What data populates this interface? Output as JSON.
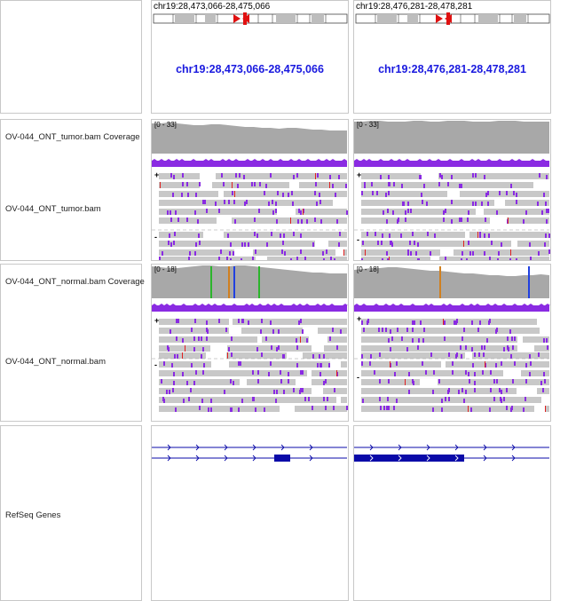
{
  "track_names": {
    "tumor_coverage": "OV-044_ONT_tumor.bam Coverage",
    "tumor_reads": "OV-044_ONT_tumor.bam",
    "normal_coverage": "OV-044_ONT_normal.bam Coverage",
    "normal_reads": "OV-044_ONT_normal.bam",
    "genes": "RefSeq Genes"
  },
  "panels": [
    {
      "locus": "chr19:28,473,066-28,475,066",
      "tumor_range": "[0 - 33]",
      "normal_range": "[0 - 18]"
    },
    {
      "locus": "chr19:28,476,281-28,478,281",
      "tumor_range": "[0 - 33]",
      "normal_range": "[0 - 18]"
    }
  ],
  "strand_labels": {
    "plus": "+",
    "minus": "-"
  },
  "colors": {
    "coverage": "#a8a8a8",
    "read": "#c8c8c8",
    "insertion": "#8a2be2",
    "gene": "#0a0aa8",
    "locus_text": "#1a1adf",
    "ideogram_marker": "#e01010",
    "snp_a": "#2cb52c",
    "snp_c": "#2040e0",
    "snp_g": "#d08020",
    "snp_t": "#e02020"
  }
}
